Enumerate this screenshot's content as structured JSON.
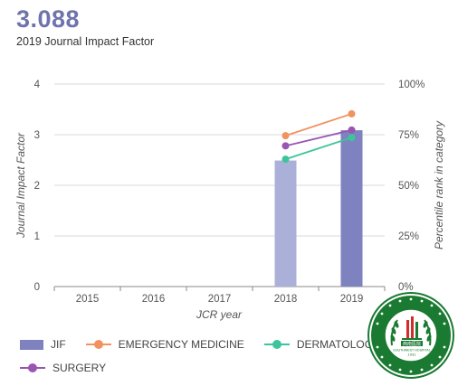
{
  "header": {
    "value": "3.088",
    "caption": "2019 Journal Impact Factor"
  },
  "colors": {
    "jif_2018": "#aab0d8",
    "jif_2019": "#7e82bf",
    "emergency_medicine": "#f0935e",
    "dermatology": "#3cc49a",
    "surgery": "#9a55b3",
    "badge_green": "#1a7a32",
    "badge_red": "#d52b2b"
  },
  "chart_data": {
    "type": "bar",
    "categories": [
      "2015",
      "2016",
      "2017",
      "2018",
      "2019"
    ],
    "xlabel": "JCR year",
    "ylabel": "Journal Impact Factor",
    "y2label": "Percentile rank in category",
    "ylim": [
      0,
      4
    ],
    "y2lim": [
      0,
      100
    ],
    "yticks": [
      "0",
      "1",
      "2",
      "3",
      "4"
    ],
    "y2ticks": [
      "0%",
      "25%",
      "50%",
      "75%",
      "100%"
    ],
    "grid": true,
    "legend_position": "bottom",
    "bars": {
      "name": "JIF",
      "values": [
        null,
        null,
        null,
        2.49,
        3.088
      ]
    },
    "series": [
      {
        "name": "EMERGENCY MEDICINE",
        "axis": "right",
        "values": [
          null,
          null,
          null,
          74.5,
          85.3
        ]
      },
      {
        "name": "DERMATOLOGY",
        "axis": "right",
        "values": [
          null,
          null,
          null,
          62.9,
          73.6
        ]
      },
      {
        "name": "SURGERY",
        "axis": "right",
        "values": [
          null,
          null,
          null,
          69.5,
          77.3
        ]
      }
    ]
  },
  "legend": {
    "jif": "JIF",
    "emergency_medicine": "EMERGENCY MEDICINE",
    "dermatology": "DERMATOLOGY",
    "surgery": "SURGERY"
  },
  "badge": {
    "label": "SOUTHWEST HOSPITAL",
    "year": "1931",
    "chinese_name": "西南医院",
    "ring_text": "陆军军医大学第一附属医院 The First Hospital Affiliated to AMU"
  }
}
